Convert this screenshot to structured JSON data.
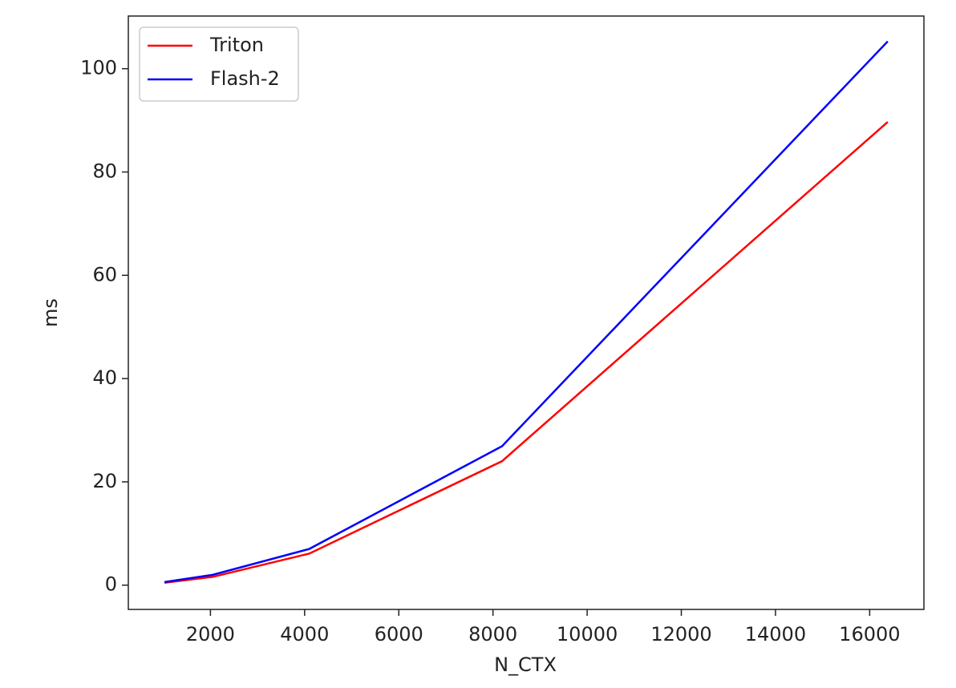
{
  "chart_data": {
    "type": "line",
    "x_label": "N_CTX",
    "y_label": "ms",
    "x": [
      1024,
      2048,
      4096,
      8192,
      16384
    ],
    "series": [
      {
        "name": "Triton",
        "color": "#ff0000",
        "values": [
          0.47,
          1.6,
          6.1,
          24.0,
          89.7
        ]
      },
      {
        "name": "Flash-2",
        "color": "#0000ff",
        "values": [
          0.6,
          2.0,
          7.0,
          26.9,
          105.3
        ]
      }
    ],
    "xlim": [
      256,
      17152
    ],
    "xticks": [
      2000,
      4000,
      6000,
      8000,
      10000,
      12000,
      14000,
      16000
    ],
    "ylim": [
      -4.7,
      110.2
    ],
    "yticks": [
      0,
      20,
      40,
      60,
      80,
      100
    ],
    "legend": "upper left"
  }
}
